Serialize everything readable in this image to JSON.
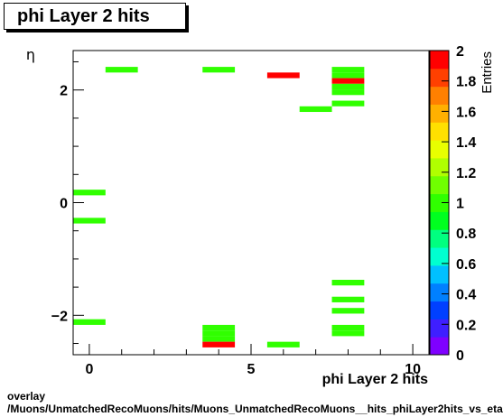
{
  "chart_data": {
    "type": "heatmap",
    "title": "phi Layer 2 hits",
    "xlabel": "phi Layer 2 hits",
    "ylabel": "η",
    "zlabel": "Entries",
    "xlim": [
      -0.5,
      10.5
    ],
    "ylim": [
      -2.7,
      2.7
    ],
    "zlim": [
      0,
      2
    ],
    "x_major_ticks": [
      0,
      5,
      10
    ],
    "y_major_ticks": [
      -2,
      0,
      2
    ],
    "z_ticks": [
      0,
      0.2,
      0.4,
      0.6,
      0.8,
      1,
      1.2,
      1.4,
      1.6,
      1.8,
      2
    ],
    "z_tick_labels": [
      "0",
      "0.2",
      "0.4",
      "0.6",
      "0.8",
      "1",
      "1.2",
      "1.4",
      "1.6",
      "1.8",
      "2"
    ],
    "x_tick_labels": [
      "0",
      "5",
      "10"
    ],
    "y_tick_labels": [
      "−2",
      "0",
      "2"
    ],
    "cells": [
      {
        "x": 1,
        "y": 2.36,
        "z": 1
      },
      {
        "x": 4,
        "y": 2.36,
        "z": 1
      },
      {
        "x": 6,
        "y": 2.26,
        "z": 2
      },
      {
        "x": 7,
        "y": 1.66,
        "z": 1
      },
      {
        "x": 8,
        "y": 2.36,
        "z": 1
      },
      {
        "x": 8,
        "y": 2.26,
        "z": 1
      },
      {
        "x": 8,
        "y": 2.16,
        "z": 2
      },
      {
        "x": 8,
        "y": 2.06,
        "z": 1
      },
      {
        "x": 8,
        "y": 1.96,
        "z": 1
      },
      {
        "x": 8,
        "y": 1.76,
        "z": 1
      },
      {
        "x": 0,
        "y": 0.18,
        "z": 1
      },
      {
        "x": 0,
        "y": -0.32,
        "z": 1
      },
      {
        "x": 8,
        "y": -1.42,
        "z": 1
      },
      {
        "x": 8,
        "y": -1.72,
        "z": 1
      },
      {
        "x": 8,
        "y": -1.92,
        "z": 1
      },
      {
        "x": 0,
        "y": -2.12,
        "z": 1
      },
      {
        "x": 8,
        "y": -2.22,
        "z": 1
      },
      {
        "x": 8,
        "y": -2.32,
        "z": 1
      },
      {
        "x": 4,
        "y": -2.22,
        "z": 1
      },
      {
        "x": 4,
        "y": -2.32,
        "z": 1
      },
      {
        "x": 4,
        "y": -2.42,
        "z": 1
      },
      {
        "x": 4,
        "y": -2.52,
        "z": 2
      },
      {
        "x": 6,
        "y": -2.52,
        "z": 1
      }
    ],
    "palette": [
      "#7f00ff",
      "#3f1fff",
      "#0040ff",
      "#0080ff",
      "#00c0ff",
      "#00ffd0",
      "#00ff80",
      "#00ff20",
      "#30ff00",
      "#70ff00",
      "#b0ff00",
      "#e8ff00",
      "#ffe000",
      "#ffb000",
      "#ff8000",
      "#ff4000",
      "#ff0000"
    ]
  },
  "footer": {
    "line1": "overlay",
    "line2": "/Muons/UnmatchedRecoMuons/hits/Muons_UnmatchedRecoMuons__hits_phiLayer2hits_vs_eta"
  }
}
